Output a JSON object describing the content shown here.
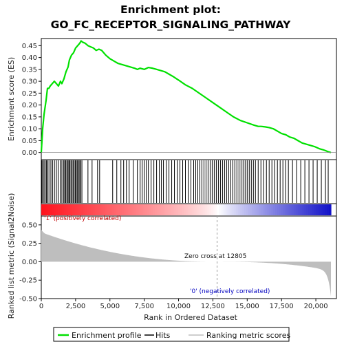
{
  "chart_data": {
    "type": "line",
    "title_line1": "Enrichment plot:",
    "title_line2": "GO_FC_RECEPTOR_SIGNALING_PATHWAY",
    "ylabel_top": "Enrichment score (ES)",
    "ylabel_bottom": "Ranked list metric (Signal2Noise)",
    "xlabel": "Rank in Ordered Dataset",
    "xlim": [
      0,
      21500
    ],
    "ylim_top": [
      -0.03,
      0.48
    ],
    "ylim_bottom": [
      -0.5,
      0.62
    ],
    "x_ticks": [
      0,
      2500,
      5000,
      7500,
      10000,
      12500,
      15000,
      17500,
      20000
    ],
    "x_tick_labels": [
      "0",
      "2,500",
      "5,000",
      "7,500",
      "10,000",
      "12,500",
      "15,000",
      "17,500",
      "20,000"
    ],
    "y_ticks_top": [
      0.0,
      0.05,
      0.1,
      0.15,
      0.2,
      0.25,
      0.3,
      0.35,
      0.4,
      0.45
    ],
    "y_tick_labels_top": [
      "0.00",
      "0.05",
      "0.10",
      "0.15",
      "0.20",
      "0.25",
      "0.30",
      "0.35",
      "0.40",
      "0.45"
    ],
    "y_ticks_bottom": [
      -0.5,
      -0.25,
      0.0,
      0.25,
      0.5
    ],
    "y_tick_labels_bottom": [
      "-0.50",
      "-0.25",
      "0.00",
      "0.25",
      "0.50"
    ],
    "zero_cross_rank": 12805,
    "zero_cross_label": "Zero cross at 12805",
    "pos_label": "'1' (positively correlated)",
    "neg_label": "'0' (negatively correlated)",
    "n_genes": 21100,
    "series": [
      {
        "name": "Enrichment profile",
        "color": "#00e000",
        "x": [
          0,
          100,
          200,
          350,
          450,
          550,
          650,
          800,
          950,
          1100,
          1250,
          1400,
          1500,
          1650,
          1800,
          1950,
          2050,
          2200,
          2350,
          2500,
          2650,
          2800,
          2900,
          3000,
          3200,
          3400,
          3600,
          3800,
          4000,
          4200,
          4400,
          4700,
          5000,
          5300,
          5600,
          5900,
          6200,
          6500,
          6800,
          7000,
          7200,
          7500,
          7800,
          8100,
          8400,
          8700,
          9000,
          9300,
          9600,
          10000,
          10500,
          11000,
          11500,
          12000,
          12500,
          13000,
          13500,
          14000,
          14500,
          15000,
          15500,
          15800,
          16000,
          16300,
          16600,
          16900,
          17200,
          17500,
          17800,
          18100,
          18400,
          18700,
          19000,
          19300,
          19600,
          19900,
          20100,
          20300,
          20500,
          20700,
          20900,
          21100
        ],
        "y": [
          0.0,
          0.1,
          0.16,
          0.22,
          0.27,
          0.27,
          0.28,
          0.29,
          0.3,
          0.29,
          0.28,
          0.3,
          0.29,
          0.31,
          0.34,
          0.36,
          0.39,
          0.41,
          0.42,
          0.44,
          0.45,
          0.46,
          0.47,
          0.465,
          0.46,
          0.45,
          0.445,
          0.44,
          0.43,
          0.435,
          0.43,
          0.41,
          0.395,
          0.385,
          0.375,
          0.37,
          0.365,
          0.36,
          0.355,
          0.35,
          0.355,
          0.35,
          0.358,
          0.355,
          0.35,
          0.345,
          0.34,
          0.33,
          0.32,
          0.305,
          0.285,
          0.27,
          0.25,
          0.23,
          0.21,
          0.19,
          0.17,
          0.15,
          0.135,
          0.125,
          0.115,
          0.11,
          0.11,
          0.108,
          0.105,
          0.1,
          0.09,
          0.08,
          0.075,
          0.065,
          0.06,
          0.05,
          0.04,
          0.035,
          0.03,
          0.025,
          0.02,
          0.015,
          0.012,
          0.008,
          0.003,
          0.0
        ]
      }
    ],
    "hits": [
      40,
      110,
      200,
      290,
      380,
      470,
      560,
      700,
      820,
      960,
      1100,
      1230,
      1380,
      1500,
      1620,
      1700,
      1780,
      1860,
      1940,
      2010,
      2080,
      2160,
      2240,
      2320,
      2400,
      2480,
      2560,
      2640,
      2720,
      2800,
      2880,
      2960,
      3400,
      3700,
      4100,
      4250,
      5200,
      5500,
      5800,
      6000,
      6200,
      6400,
      6700,
      7000,
      7200,
      7350,
      7500,
      7650,
      7800,
      8000,
      8200,
      8400,
      8600,
      8750,
      8900,
      9100,
      9300,
      9500,
      9700,
      9900,
      10100,
      10300,
      10500,
      10700,
      10900,
      11100,
      11250,
      11400,
      11550,
      11700,
      11850,
      12000,
      12150,
      12300,
      12450,
      12600,
      12750,
      12900,
      13050,
      13200,
      13350,
      13500,
      13650,
      13800,
      13950,
      14100,
      14250,
      14400,
      14550,
      14700,
      14850,
      15000,
      15150,
      15300,
      15450,
      15600,
      15800,
      16000,
      16200,
      16400,
      16600,
      16800,
      17000,
      17200,
      17400,
      17600,
      17800,
      18000,
      18300,
      18600,
      18900,
      19200,
      19500,
      19800,
      20100,
      20400,
      20700,
      20900
    ],
    "legend": [
      {
        "label": "Enrichment profile",
        "color": "#00e000"
      },
      {
        "label": "Hits",
        "color": "#000000"
      },
      {
        "label": "Ranking metric scores",
        "color": "#bebebe"
      }
    ]
  }
}
